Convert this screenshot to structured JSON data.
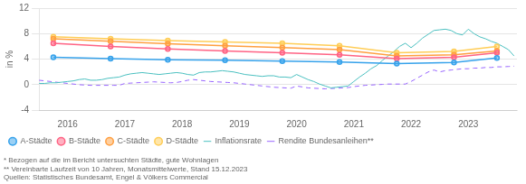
{
  "chart_data": {
    "type": "line",
    "y_label": "in %",
    "xlim": [
      2015.5,
      2023.85
    ],
    "xticks": [
      2016,
      2017,
      2018,
      2019,
      2020,
      2021,
      2022,
      2023
    ],
    "ylim": [
      -4,
      12
    ],
    "yticks": [
      -4,
      0,
      4,
      8,
      12
    ],
    "grid": "y",
    "legend": "bottom",
    "annotations": [
      "* Bezogen auf die im Bericht untersuchten Städte, gute Wohnlagen",
      "** Vereinbarte Laufzeit von 10 Jahren, Monatsmittelwerte, Stand 15.12.2023",
      "Quellen: Statistisches Bundesamt, Engel & Völkers Commercial"
    ],
    "series": [
      {
        "name": "A-Städte",
        "marker": "circle",
        "line_style": "solid",
        "x": [
          2015.75,
          2016.75,
          2017.75,
          2018.75,
          2019.75,
          2020.75,
          2021.75,
          2022.75,
          2023.5
        ],
        "values": [
          4.3,
          4.1,
          3.9,
          3.85,
          3.7,
          3.55,
          3.3,
          3.5,
          4.2
        ]
      },
      {
        "name": "B-Städte",
        "marker": "circle",
        "line_style": "solid",
        "x": [
          2015.75,
          2016.75,
          2017.75,
          2018.75,
          2019.75,
          2020.75,
          2021.75,
          2022.75,
          2023.5
        ],
        "values": [
          6.5,
          6.0,
          5.6,
          5.3,
          5.0,
          4.7,
          4.1,
          4.3,
          5.0
        ]
      },
      {
        "name": "C-Städte",
        "marker": "circle",
        "line_style": "solid",
        "x": [
          2015.75,
          2016.75,
          2017.75,
          2018.75,
          2019.75,
          2020.75,
          2021.75,
          2022.75,
          2023.5
        ],
        "values": [
          7.2,
          6.8,
          6.4,
          6.1,
          5.8,
          5.5,
          4.5,
          4.7,
          5.3
        ]
      },
      {
        "name": "D-Städte",
        "marker": "circle",
        "line_style": "solid",
        "x": [
          2015.75,
          2016.75,
          2017.75,
          2018.75,
          2019.75,
          2020.75,
          2021.75,
          2022.75,
          2023.5
        ],
        "values": [
          7.5,
          7.2,
          6.9,
          6.7,
          6.5,
          6.1,
          5.0,
          5.2,
          6.0
        ]
      },
      {
        "name": "Inflationsrate",
        "marker": "none",
        "line_style": "solid",
        "x": [
          2015.5,
          2015.6,
          2015.7,
          2015.8,
          2015.9,
          2016.0,
          2016.1,
          2016.2,
          2016.3,
          2016.4,
          2016.5,
          2016.6,
          2016.7,
          2016.8,
          2016.9,
          2017.0,
          2017.1,
          2017.2,
          2017.3,
          2017.4,
          2017.5,
          2017.6,
          2017.7,
          2017.8,
          2017.9,
          2018.0,
          2018.1,
          2018.2,
          2018.3,
          2018.4,
          2018.5,
          2018.6,
          2018.7,
          2018.8,
          2018.9,
          2019.0,
          2019.1,
          2019.2,
          2019.3,
          2019.4,
          2019.5,
          2019.6,
          2019.7,
          2019.8,
          2019.9,
          2020.0,
          2020.1,
          2020.2,
          2020.3,
          2020.4,
          2020.5,
          2020.6,
          2020.7,
          2020.8,
          2020.9,
          2021.0,
          2021.1,
          2021.2,
          2021.3,
          2021.4,
          2021.5,
          2021.6,
          2021.7,
          2021.8,
          2021.9,
          2022.0,
          2022.1,
          2022.2,
          2022.3,
          2022.4,
          2022.5,
          2022.6,
          2022.7,
          2022.8,
          2022.9,
          2023.0,
          2023.1,
          2023.2,
          2023.3,
          2023.4,
          2023.5,
          2023.6,
          2023.7,
          2023.8
        ],
        "values": [
          0.2,
          0.2,
          0.3,
          0.3,
          0.4,
          0.5,
          0.6,
          0.8,
          0.9,
          0.7,
          0.7,
          0.8,
          1.0,
          1.1,
          1.2,
          1.5,
          1.7,
          1.8,
          1.9,
          1.8,
          1.7,
          1.6,
          1.7,
          1.8,
          1.9,
          1.8,
          1.6,
          1.5,
          1.9,
          2.0,
          2.0,
          2.1,
          2.2,
          2.1,
          2.0,
          1.8,
          1.6,
          1.5,
          1.4,
          1.3,
          1.4,
          1.4,
          1.2,
          1.2,
          1.1,
          1.6,
          1.2,
          0.8,
          0.5,
          0.1,
          -0.2,
          -0.5,
          -0.4,
          -0.3,
          -0.2,
          0.5,
          1.2,
          1.8,
          2.5,
          3.0,
          3.8,
          4.5,
          5.2,
          6.0,
          6.5,
          5.8,
          6.5,
          7.3,
          7.9,
          8.5,
          8.6,
          8.7,
          8.5,
          8.0,
          7.8,
          8.7,
          8.0,
          7.5,
          7.2,
          6.8,
          6.5,
          6.0,
          5.5,
          4.5
        ]
      },
      {
        "name": "Rendite Bundesanleihen**",
        "marker": "none",
        "line_style": "dashed",
        "x": [
          2015.5,
          2015.6,
          2015.7,
          2015.8,
          2015.9,
          2016.0,
          2016.1,
          2016.2,
          2016.3,
          2016.4,
          2016.5,
          2016.6,
          2016.7,
          2016.8,
          2016.9,
          2017.0,
          2017.1,
          2017.2,
          2017.3,
          2017.4,
          2017.5,
          2017.6,
          2017.7,
          2017.8,
          2017.9,
          2018.0,
          2018.1,
          2018.2,
          2018.3,
          2018.4,
          2018.5,
          2018.6,
          2018.7,
          2018.8,
          2018.9,
          2019.0,
          2019.1,
          2019.2,
          2019.3,
          2019.4,
          2019.5,
          2019.6,
          2019.7,
          2019.8,
          2019.9,
          2020.0,
          2020.1,
          2020.2,
          2020.3,
          2020.4,
          2020.5,
          2020.6,
          2020.7,
          2020.8,
          2020.9,
          2021.0,
          2021.1,
          2021.2,
          2021.3,
          2021.4,
          2021.5,
          2021.6,
          2021.7,
          2021.8,
          2021.9,
          2022.0,
          2022.1,
          2022.2,
          2022.3,
          2022.4,
          2022.5,
          2022.6,
          2022.7,
          2022.8,
          2022.9,
          2023.0,
          2023.1,
          2023.2,
          2023.3,
          2023.4,
          2023.5,
          2023.6,
          2023.7,
          2023.8
        ],
        "values": [
          0.7,
          0.6,
          0.5,
          0.4,
          0.3,
          0.2,
          0.1,
          0.0,
          -0.05,
          -0.1,
          -0.1,
          -0.1,
          -0.1,
          -0.1,
          -0.1,
          0.2,
          0.25,
          0.3,
          0.35,
          0.4,
          0.45,
          0.4,
          0.35,
          0.3,
          0.35,
          0.5,
          0.7,
          0.8,
          0.7,
          0.6,
          0.5,
          0.45,
          0.4,
          0.35,
          0.3,
          0.2,
          0.1,
          0.0,
          -0.1,
          -0.2,
          -0.3,
          -0.4,
          -0.45,
          -0.5,
          -0.55,
          -0.2,
          -0.35,
          -0.5,
          -0.55,
          -0.6,
          -0.65,
          -0.6,
          -0.55,
          -0.5,
          -0.45,
          -0.3,
          -0.2,
          -0.1,
          -0.05,
          0.0,
          0.05,
          0.1,
          0.1,
          0.1,
          0.1,
          0.5,
          1.0,
          1.5,
          2.0,
          2.3,
          2.0,
          2.2,
          2.3,
          2.4,
          2.5,
          2.5,
          2.6,
          2.6,
          2.7,
          2.7,
          2.8,
          2.8,
          2.85,
          2.9
        ]
      }
    ]
  }
}
